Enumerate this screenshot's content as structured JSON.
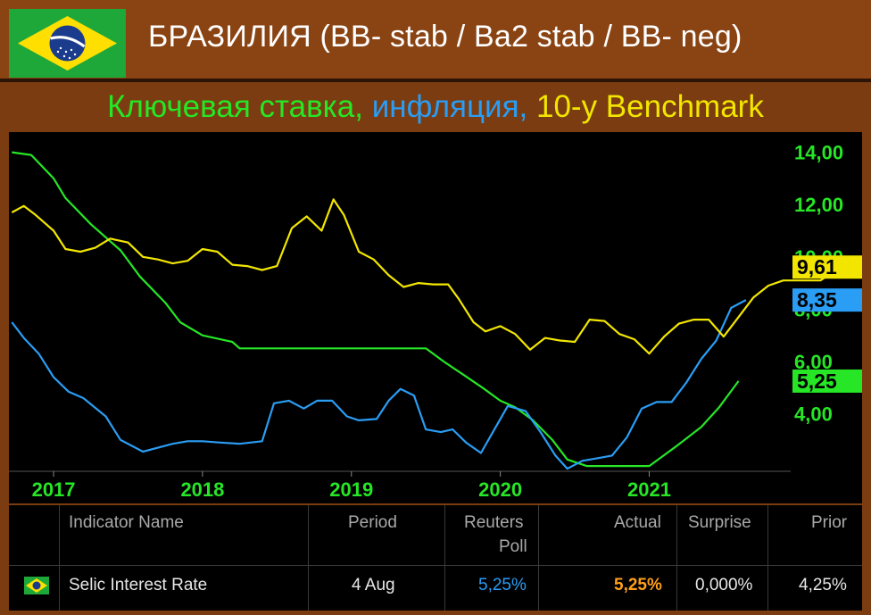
{
  "header": {
    "title": "БРАЗИЛИЯ (BB- stab / Ba2 stab / BB- neg)",
    "subtitle_rate": "Ключевая ставка,",
    "subtitle_inflation": "инфляция,",
    "subtitle_benchmark": "10-y Benchmark",
    "flag_icon": "brazil-flag-icon"
  },
  "colors": {
    "rate": "#26e626",
    "inflation": "#2a9df4",
    "benchmark": "#f2e600",
    "background": "#000000",
    "frame": "#7a3c10"
  },
  "chart_data": {
    "type": "line",
    "x_tick_labels": [
      "2017",
      "2018",
      "2019",
      "2020",
      "2021"
    ],
    "x_tick_values": [
      2017.0,
      2018.0,
      2019.0,
      2020.0,
      2021.0
    ],
    "xlim": [
      2016.7,
      2021.95
    ],
    "y_tick_labels": [
      "4,00",
      "6,00",
      "8,00",
      "10,00",
      "12,00",
      "14,00"
    ],
    "y_tick_values": [
      4,
      6,
      8,
      10,
      12,
      14
    ],
    "ylim": [
      1.8,
      14.5
    ],
    "grid": false,
    "last_value_labels": [
      {
        "series": "benchmark",
        "text": "9,61",
        "value": 9.61
      },
      {
        "series": "inflation",
        "text": "8,35",
        "value": 8.35
      },
      {
        "series": "rate",
        "text": "5,25",
        "value": 5.25
      }
    ],
    "series": [
      {
        "key": "rate",
        "points": [
          [
            2016.72,
            14.0
          ],
          [
            2016.85,
            13.9
          ],
          [
            2017.0,
            13.0
          ],
          [
            2017.08,
            12.25
          ],
          [
            2017.25,
            11.25
          ],
          [
            2017.45,
            10.25
          ],
          [
            2017.58,
            9.25
          ],
          [
            2017.75,
            8.25
          ],
          [
            2017.85,
            7.5
          ],
          [
            2018.0,
            7.0
          ],
          [
            2018.2,
            6.75
          ],
          [
            2018.25,
            6.5
          ],
          [
            2018.5,
            6.5
          ],
          [
            2019.0,
            6.5
          ],
          [
            2019.5,
            6.5
          ],
          [
            2019.62,
            6.0
          ],
          [
            2019.75,
            5.5
          ],
          [
            2019.88,
            5.0
          ],
          [
            2020.0,
            4.5
          ],
          [
            2020.1,
            4.25
          ],
          [
            2020.22,
            3.75
          ],
          [
            2020.35,
            3.0
          ],
          [
            2020.45,
            2.25
          ],
          [
            2020.58,
            2.0
          ],
          [
            2020.75,
            2.0
          ],
          [
            2021.0,
            2.0
          ],
          [
            2021.18,
            2.75
          ],
          [
            2021.35,
            3.5
          ],
          [
            2021.47,
            4.25
          ],
          [
            2021.6,
            5.25
          ]
        ]
      },
      {
        "key": "inflation",
        "points": [
          [
            2016.72,
            7.5
          ],
          [
            2016.8,
            6.9
          ],
          [
            2016.9,
            6.3
          ],
          [
            2017.0,
            5.4
          ],
          [
            2017.1,
            4.85
          ],
          [
            2017.2,
            4.6
          ],
          [
            2017.35,
            3.9
          ],
          [
            2017.45,
            3.0
          ],
          [
            2017.6,
            2.55
          ],
          [
            2017.7,
            2.7
          ],
          [
            2017.8,
            2.85
          ],
          [
            2017.9,
            2.95
          ],
          [
            2018.0,
            2.95
          ],
          [
            2018.12,
            2.9
          ],
          [
            2018.25,
            2.85
          ],
          [
            2018.4,
            2.95
          ],
          [
            2018.48,
            4.4
          ],
          [
            2018.58,
            4.5
          ],
          [
            2018.68,
            4.2
          ],
          [
            2018.77,
            4.5
          ],
          [
            2018.87,
            4.5
          ],
          [
            2018.97,
            3.9
          ],
          [
            2019.05,
            3.75
          ],
          [
            2019.17,
            3.8
          ],
          [
            2019.25,
            4.5
          ],
          [
            2019.33,
            4.95
          ],
          [
            2019.42,
            4.7
          ],
          [
            2019.5,
            3.4
          ],
          [
            2019.6,
            3.3
          ],
          [
            2019.68,
            3.4
          ],
          [
            2019.77,
            2.9
          ],
          [
            2019.87,
            2.5
          ],
          [
            2019.95,
            3.3
          ],
          [
            2020.05,
            4.3
          ],
          [
            2020.17,
            4.1
          ],
          [
            2020.27,
            3.3
          ],
          [
            2020.37,
            2.4
          ],
          [
            2020.45,
            1.9
          ],
          [
            2020.55,
            2.2
          ],
          [
            2020.65,
            2.3
          ],
          [
            2020.75,
            2.4
          ],
          [
            2020.85,
            3.1
          ],
          [
            2020.95,
            4.2
          ],
          [
            2021.05,
            4.45
          ],
          [
            2021.15,
            4.45
          ],
          [
            2021.25,
            5.2
          ],
          [
            2021.35,
            6.1
          ],
          [
            2021.45,
            6.8
          ],
          [
            2021.55,
            8.05
          ],
          [
            2021.65,
            8.35
          ]
        ]
      },
      {
        "key": "benchmark",
        "points": [
          [
            2016.72,
            11.7
          ],
          [
            2016.8,
            11.95
          ],
          [
            2016.88,
            11.6
          ],
          [
            2017.0,
            11.0
          ],
          [
            2017.08,
            10.3
          ],
          [
            2017.18,
            10.2
          ],
          [
            2017.28,
            10.35
          ],
          [
            2017.38,
            10.7
          ],
          [
            2017.5,
            10.55
          ],
          [
            2017.6,
            10.0
          ],
          [
            2017.7,
            9.9
          ],
          [
            2017.8,
            9.75
          ],
          [
            2017.9,
            9.85
          ],
          [
            2018.0,
            10.3
          ],
          [
            2018.1,
            10.2
          ],
          [
            2018.2,
            9.7
          ],
          [
            2018.3,
            9.65
          ],
          [
            2018.4,
            9.5
          ],
          [
            2018.5,
            9.65
          ],
          [
            2018.6,
            11.1
          ],
          [
            2018.7,
            11.55
          ],
          [
            2018.8,
            11.0
          ],
          [
            2018.88,
            12.2
          ],
          [
            2018.95,
            11.6
          ],
          [
            2019.05,
            10.2
          ],
          [
            2019.15,
            9.9
          ],
          [
            2019.25,
            9.3
          ],
          [
            2019.35,
            8.85
          ],
          [
            2019.45,
            9.0
          ],
          [
            2019.55,
            8.95
          ],
          [
            2019.65,
            8.95
          ],
          [
            2019.72,
            8.4
          ],
          [
            2019.82,
            7.5
          ],
          [
            2019.9,
            7.15
          ],
          [
            2020.0,
            7.35
          ],
          [
            2020.1,
            7.05
          ],
          [
            2020.2,
            6.45
          ],
          [
            2020.3,
            6.9
          ],
          [
            2020.4,
            6.8
          ],
          [
            2020.5,
            6.75
          ],
          [
            2020.6,
            7.6
          ],
          [
            2020.7,
            7.55
          ],
          [
            2020.8,
            7.05
          ],
          [
            2020.9,
            6.85
          ],
          [
            2021.0,
            6.3
          ],
          [
            2021.1,
            6.95
          ],
          [
            2021.2,
            7.45
          ],
          [
            2021.3,
            7.6
          ],
          [
            2021.4,
            7.6
          ],
          [
            2021.5,
            6.95
          ],
          [
            2021.6,
            7.7
          ],
          [
            2021.7,
            8.45
          ],
          [
            2021.8,
            8.9
          ],
          [
            2021.9,
            9.1
          ],
          [
            2022.0,
            9.1
          ],
          [
            2022.15,
            9.1
          ],
          [
            2022.28,
            9.61
          ]
        ]
      }
    ]
  },
  "table": {
    "headers": {
      "indicator": "Indicator Name",
      "period": "Period",
      "poll_line1": "Reuters",
      "poll_line2": "Poll",
      "actual": "Actual",
      "surprise": "Surprise",
      "prior": "Prior"
    },
    "row": {
      "flag_icon": "brazil-flag-icon",
      "indicator": "Selic Interest Rate",
      "period": "4 Aug",
      "poll": "5,25%",
      "actual": "5,25%",
      "surprise": "0,000%",
      "prior": "4,25%"
    },
    "poll_color": "#2a9df4",
    "actual_color": "#ff9f1a"
  }
}
